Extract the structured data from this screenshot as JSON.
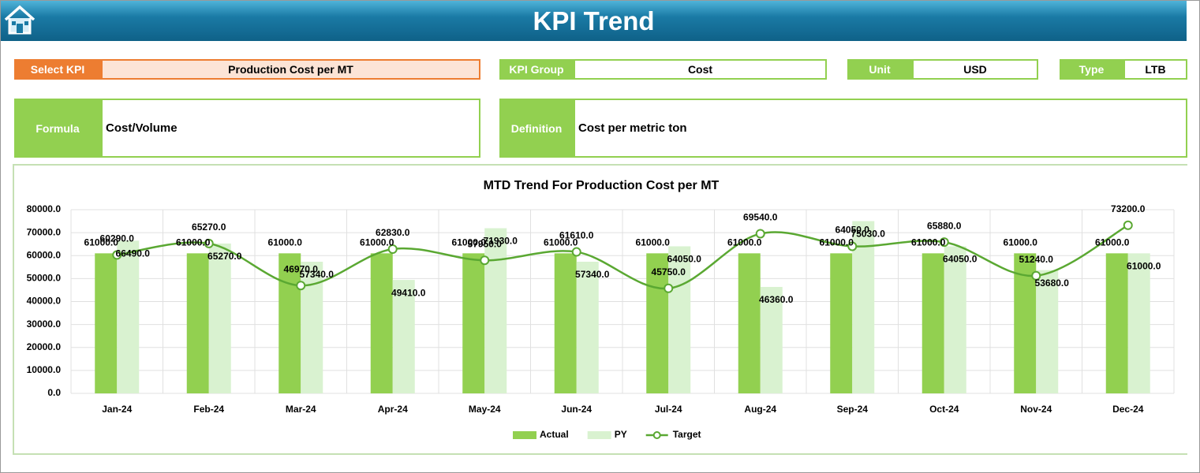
{
  "header": {
    "title": "KPI Trend"
  },
  "fields": {
    "select_kpi": {
      "label": "Select KPI",
      "value": "Production Cost per MT"
    },
    "kpi_group": {
      "label": "KPI Group",
      "value": "Cost"
    },
    "unit": {
      "label": "Unit",
      "value": "USD"
    },
    "type": {
      "label": "Type",
      "value": "LTB"
    },
    "formula": {
      "label": "Formula",
      "value": "Cost/Volume"
    },
    "definition": {
      "label": "Definition",
      "value": "Cost per metric ton"
    }
  },
  "chart_data": {
    "type": "bar",
    "title": "MTD Trend For Production Cost per MT",
    "categories": [
      "Jan-24",
      "Feb-24",
      "Mar-24",
      "Apr-24",
      "May-24",
      "Jun-24",
      "Jul-24",
      "Aug-24",
      "Sep-24",
      "Oct-24",
      "Nov-24",
      "Dec-24"
    ],
    "series": [
      {
        "name": "Actual",
        "type": "bar",
        "color": "#92d050",
        "values": [
          61000,
          61000,
          61000,
          61000,
          61000,
          61000,
          61000,
          61000,
          61000,
          61000,
          61000,
          61000
        ],
        "value_labels": [
          "61000.0",
          "61000.0",
          "61000.0",
          "61000.0",
          "61000.0",
          "61000.0",
          "61000.0",
          "61000.0",
          "61000.0",
          "61000.0",
          "61000.0",
          "61000.0"
        ]
      },
      {
        "name": "PY",
        "type": "bar",
        "color": "#d9f2d0",
        "values": [
          66490,
          65270,
          57340,
          49410,
          71930,
          57340,
          64050,
          46360,
          75030,
          64050,
          53680,
          61000
        ],
        "value_labels": [
          "66490.0",
          "65270.0",
          "57340.0",
          "49410.0",
          "71930.0",
          "57340.0",
          "64050.0",
          "46360.0",
          "75030.0",
          "64050.0",
          "53680.0",
          "61000.0"
        ]
      },
      {
        "name": "Target",
        "type": "line",
        "color": "#5aa832",
        "values": [
          60290,
          65270,
          46970,
          62830,
          57950,
          61610,
          45750,
          69540,
          64050,
          65880,
          51240,
          73200
        ],
        "value_labels": [
          "60290.0",
          "65270.0",
          "46970.0",
          "62830.0",
          "57950.0",
          "61610.0",
          "45750.0",
          "69540.0",
          "64050.0",
          "65880.0",
          "51240.0",
          "73200.0"
        ]
      }
    ],
    "ylim": [
      0,
      80000
    ],
    "yticks": [
      {
        "value": 0,
        "label": "0.0"
      },
      {
        "value": 10000,
        "label": "10000.0"
      },
      {
        "value": 20000,
        "label": "20000.0"
      },
      {
        "value": 30000,
        "label": "30000.0"
      },
      {
        "value": 40000,
        "label": "40000.0"
      },
      {
        "value": 50000,
        "label": "50000.0"
      },
      {
        "value": 60000,
        "label": "60000.0"
      },
      {
        "value": 70000,
        "label": "70000.0"
      },
      {
        "value": 80000,
        "label": "80000.0"
      }
    ],
    "grid": true,
    "legend": "bottom"
  }
}
